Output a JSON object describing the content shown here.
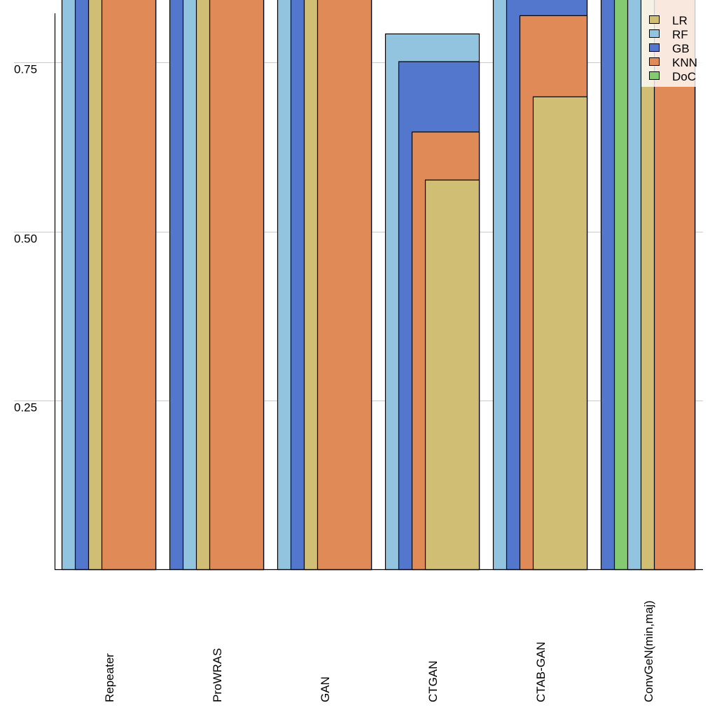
{
  "chart_data": {
    "type": "bar",
    "layout": "overlapping-layered",
    "title": "",
    "xlabel": "",
    "ylabel": "",
    "ylim": [
      0,
      0.84
    ],
    "yticks": [
      0.25,
      0.5,
      0.75
    ],
    "ytick_labels": [
      "0.25",
      "0.50",
      "0.75"
    ],
    "grid": "horizontal",
    "legend_position": "top-right",
    "categories": [
      "Repeater",
      "ProWRAS",
      "GAN",
      "CTGAN",
      "CTAB-GAN",
      "ConvGeN(min,maj)"
    ],
    "series": [
      {
        "name": "LR",
        "color": "#D1BE75",
        "values": [
          0.91,
          0.9,
          0.9,
          0.576,
          0.699,
          0.89
        ]
      },
      {
        "name": "RF",
        "color": "#92C4E0",
        "values": [
          0.95,
          0.92,
          0.94,
          0.792,
          0.9,
          0.91
        ]
      },
      {
        "name": "GB",
        "color": "#5277CC",
        "values": [
          0.93,
          0.94,
          0.92,
          0.751,
          0.88,
          0.95
        ]
      },
      {
        "name": "KNN",
        "color": "#E08A57",
        "values": [
          0.89,
          0.88,
          0.88,
          0.647,
          0.819,
          0.87
        ]
      },
      {
        "name": "DoC",
        "color": "#83CA70",
        "values": [
          null,
          null,
          null,
          null,
          null,
          0.93
        ]
      }
    ],
    "note": "Values above ~0.84 are clipped at the top of the visible plot; only their ordering is visible."
  }
}
